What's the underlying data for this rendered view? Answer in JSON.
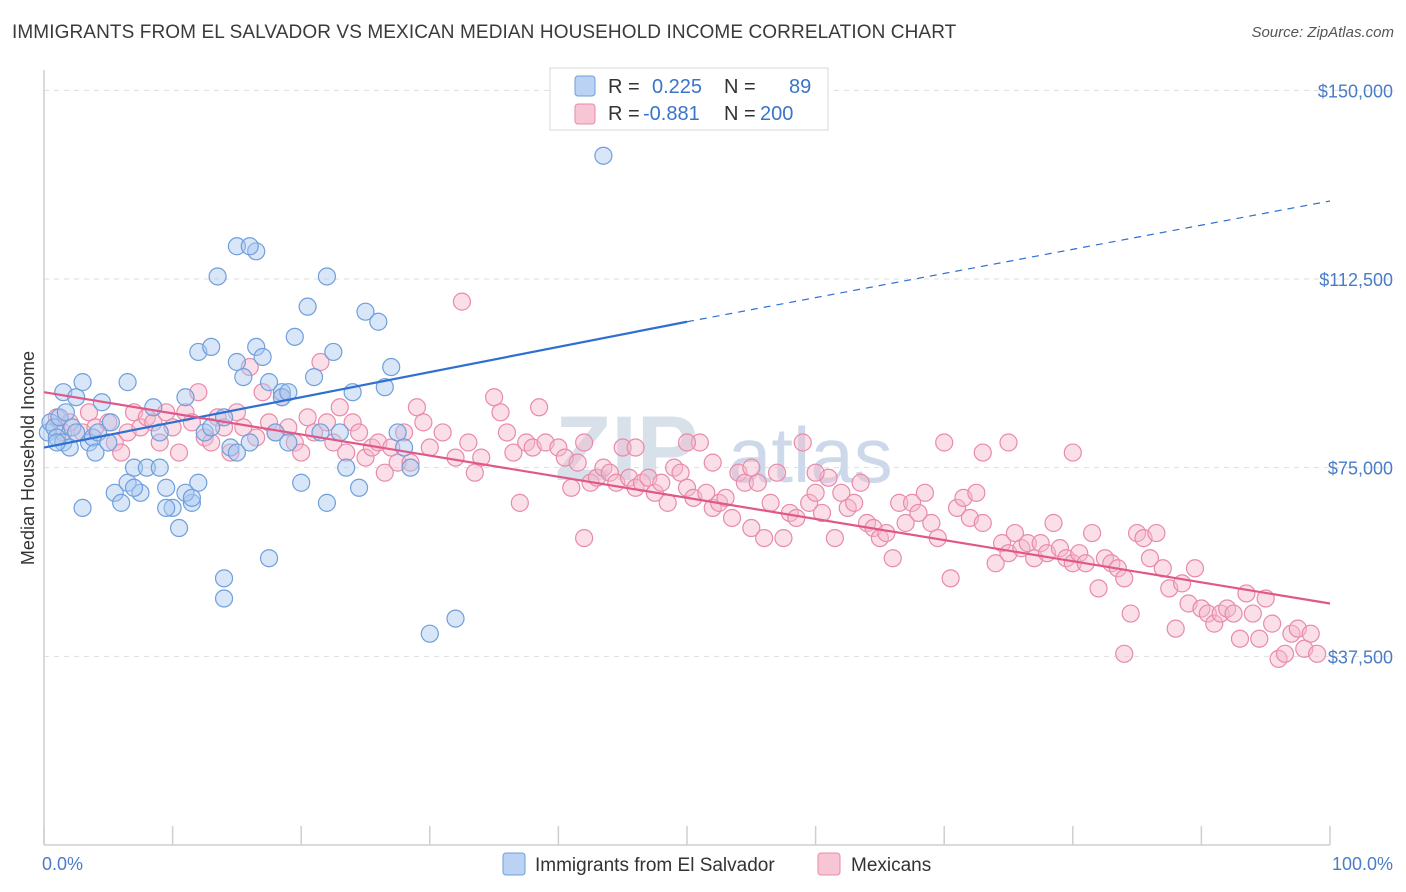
{
  "title": "IMMIGRANTS FROM EL SALVADOR VS MEXICAN MEDIAN HOUSEHOLD INCOME CORRELATION CHART",
  "source": "Source: ZipAtlas.com",
  "watermark": {
    "zip": "ZIP",
    "atlas": "atlas"
  },
  "legend_top": {
    "rows": [
      {
        "r_label": "R =",
        "r_value": "0.225",
        "n_label": "N =",
        "n_value": "89",
        "color": "#a9c7f0"
      },
      {
        "r_label": "R =",
        "r_value": "-0.881",
        "n_label": "N =",
        "n_value": "200",
        "color": "#f5b8cb"
      }
    ]
  },
  "legend_bottom": {
    "items": [
      {
        "label": "Immigrants from El Salvador",
        "color": "#a9c7f0"
      },
      {
        "label": "Mexicans",
        "color": "#f5b8cb"
      }
    ]
  },
  "chart_data": {
    "type": "scatter",
    "xlabel": "",
    "ylabel": "Median Household Income",
    "x_ticks": [
      "0.0%",
      "100.0%"
    ],
    "y_ticks": [
      "$150,000",
      "$112,500",
      "$75,000",
      "$37,500"
    ],
    "y_tick_values": [
      150000,
      112500,
      75000,
      37500
    ],
    "xlim": [
      0,
      100
    ],
    "ylim": [
      0,
      160000
    ],
    "grid": true,
    "series": [
      {
        "name": "Immigrants from El Salvador",
        "color": "#a9c7f0",
        "stroke": "#6f9fdc",
        "trend": {
          "x0": 0,
          "y0": 79000,
          "x1": 50,
          "y1": 104000,
          "x_dash_end": 100,
          "y_dash_end": 128000,
          "color": "#2f6fd0"
        },
        "points": [
          [
            0.3,
            82000
          ],
          [
            0.5,
            84000
          ],
          [
            0.8,
            83000
          ],
          [
            1.0,
            81000
          ],
          [
            1.2,
            85000
          ],
          [
            1.5,
            80000
          ],
          [
            1.7,
            86000
          ],
          [
            2.0,
            79000
          ],
          [
            2.2,
            83000
          ],
          [
            2.5,
            82000
          ],
          [
            1.5,
            90000
          ],
          [
            2.5,
            89000
          ],
          [
            3.0,
            92000
          ],
          [
            3.5,
            80000
          ],
          [
            3.8,
            81000
          ],
          [
            4.0,
            78000
          ],
          [
            4.2,
            82000
          ],
          [
            4.5,
            88000
          ],
          [
            5.0,
            80000
          ],
          [
            5.2,
            84000
          ],
          [
            5.5,
            70000
          ],
          [
            6.0,
            68000
          ],
          [
            6.5,
            72000
          ],
          [
            7.0,
            75000
          ],
          [
            7.5,
            70000
          ],
          [
            8.0,
            75000
          ],
          [
            8.5,
            87000
          ],
          [
            9.0,
            82000
          ],
          [
            9.5,
            71000
          ],
          [
            10.0,
            67000
          ],
          [
            3.0,
            67000
          ],
          [
            6.5,
            92000
          ],
          [
            7.0,
            71000
          ],
          [
            9.0,
            75000
          ],
          [
            10.5,
            63000
          ],
          [
            11.0,
            89000
          ],
          [
            11.5,
            68000
          ],
          [
            12.0,
            72000
          ],
          [
            12.5,
            82000
          ],
          [
            9.5,
            67000
          ],
          [
            12.0,
            98000
          ],
          [
            13.0,
            99000
          ],
          [
            13.5,
            113000
          ],
          [
            14.0,
            85000
          ],
          [
            14.5,
            79000
          ],
          [
            15.0,
            96000
          ],
          [
            15.5,
            93000
          ],
          [
            16.0,
            80000
          ],
          [
            16.5,
            99000
          ],
          [
            17.0,
            97000
          ],
          [
            11.0,
            70000
          ],
          [
            11.5,
            69000
          ],
          [
            13.0,
            83000
          ],
          [
            14.0,
            53000
          ],
          [
            15.0,
            78000
          ],
          [
            17.5,
            92000
          ],
          [
            18.0,
            82000
          ],
          [
            18.5,
            90000
          ],
          [
            19.0,
            80000
          ],
          [
            19.5,
            101000
          ],
          [
            14.0,
            49000
          ],
          [
            15.0,
            119000
          ],
          [
            16.5,
            118000
          ],
          [
            17.5,
            57000
          ],
          [
            18.5,
            89000
          ],
          [
            19.0,
            90000
          ],
          [
            20.0,
            72000
          ],
          [
            20.5,
            107000
          ],
          [
            21.0,
            93000
          ],
          [
            21.5,
            82000
          ],
          [
            16.0,
            119000
          ],
          [
            22.0,
            68000
          ],
          [
            22.5,
            98000
          ],
          [
            23.0,
            82000
          ],
          [
            23.5,
            75000
          ],
          [
            24.0,
            90000
          ],
          [
            24.5,
            71000
          ],
          [
            25.0,
            106000
          ],
          [
            26.0,
            104000
          ],
          [
            26.5,
            91000
          ],
          [
            27.0,
            95000
          ],
          [
            27.5,
            82000
          ],
          [
            28.0,
            79000
          ],
          [
            28.5,
            75000
          ],
          [
            30.0,
            42000
          ],
          [
            32.0,
            45000
          ],
          [
            43.5,
            137000
          ],
          [
            22.0,
            113000
          ],
          [
            1.0,
            80000
          ]
        ]
      },
      {
        "name": "Mexicans",
        "color": "#f5b8cb",
        "stroke": "#e98aa9",
        "trend": {
          "x0": 0,
          "y0": 90000,
          "x1": 100,
          "y1": 48000,
          "color": "#e0578a"
        },
        "points": [
          [
            1.0,
            85000
          ],
          [
            1.5,
            82000
          ],
          [
            2.0,
            84000
          ],
          [
            3.0,
            82000
          ],
          [
            3.5,
            86000
          ],
          [
            4.0,
            83000
          ],
          [
            5.0,
            84000
          ],
          [
            5.5,
            80000
          ],
          [
            6.0,
            78000
          ],
          [
            6.5,
            82000
          ],
          [
            7.0,
            86000
          ],
          [
            7.5,
            83000
          ],
          [
            8.0,
            85000
          ],
          [
            8.5,
            84000
          ],
          [
            9.0,
            80000
          ],
          [
            9.5,
            86000
          ],
          [
            10.0,
            83000
          ],
          [
            10.5,
            78000
          ],
          [
            11.0,
            86000
          ],
          [
            11.5,
            84000
          ],
          [
            12.0,
            90000
          ],
          [
            12.5,
            81000
          ],
          [
            13.0,
            80000
          ],
          [
            13.5,
            85000
          ],
          [
            14.0,
            83000
          ],
          [
            14.5,
            78000
          ],
          [
            15.0,
            86000
          ],
          [
            15.5,
            83000
          ],
          [
            16.0,
            95000
          ],
          [
            16.5,
            81000
          ],
          [
            17.0,
            90000
          ],
          [
            17.5,
            84000
          ],
          [
            18.0,
            82000
          ],
          [
            18.5,
            89000
          ],
          [
            19.0,
            83000
          ],
          [
            19.5,
            80000
          ],
          [
            20.0,
            78000
          ],
          [
            20.5,
            85000
          ],
          [
            21.0,
            82000
          ],
          [
            21.5,
            96000
          ],
          [
            22.0,
            84000
          ],
          [
            22.5,
            80000
          ],
          [
            23.0,
            87000
          ],
          [
            23.5,
            78000
          ],
          [
            24.0,
            84000
          ],
          [
            24.5,
            82000
          ],
          [
            25.0,
            77000
          ],
          [
            25.5,
            79000
          ],
          [
            26.0,
            80000
          ],
          [
            26.5,
            74000
          ],
          [
            27.0,
            79000
          ],
          [
            27.5,
            76000
          ],
          [
            28.0,
            82000
          ],
          [
            28.5,
            76000
          ],
          [
            29.0,
            87000
          ],
          [
            29.5,
            84000
          ],
          [
            30.0,
            79000
          ],
          [
            31.0,
            82000
          ],
          [
            32.0,
            77000
          ],
          [
            32.5,
            108000
          ],
          [
            33.0,
            80000
          ],
          [
            33.5,
            74000
          ],
          [
            34.0,
            77000
          ],
          [
            35.0,
            89000
          ],
          [
            35.5,
            86000
          ],
          [
            36.0,
            82000
          ],
          [
            36.5,
            78000
          ],
          [
            37.0,
            68000
          ],
          [
            37.5,
            80000
          ],
          [
            38.0,
            79000
          ],
          [
            38.5,
            87000
          ],
          [
            39.0,
            80000
          ],
          [
            40.0,
            79000
          ],
          [
            40.5,
            77000
          ],
          [
            41.0,
            71000
          ],
          [
            41.5,
            76000
          ],
          [
            42.0,
            80000
          ],
          [
            42.5,
            72000
          ],
          [
            43.0,
            73000
          ],
          [
            43.5,
            75000
          ],
          [
            44.0,
            74000
          ],
          [
            44.5,
            72000
          ],
          [
            45.0,
            79000
          ],
          [
            45.5,
            73000
          ],
          [
            46.0,
            71000
          ],
          [
            46.5,
            72000
          ],
          [
            47.0,
            73000
          ],
          [
            47.5,
            70000
          ],
          [
            48.0,
            72000
          ],
          [
            48.5,
            68000
          ],
          [
            49.0,
            75000
          ],
          [
            49.5,
            74000
          ],
          [
            50.0,
            71000
          ],
          [
            50.5,
            69000
          ],
          [
            51.0,
            80000
          ],
          [
            51.5,
            70000
          ],
          [
            52.0,
            67000
          ],
          [
            52.5,
            68000
          ],
          [
            53.0,
            69000
          ],
          [
            53.5,
            65000
          ],
          [
            54.0,
            74000
          ],
          [
            54.5,
            72000
          ],
          [
            55.0,
            63000
          ],
          [
            55.5,
            72000
          ],
          [
            56.0,
            61000
          ],
          [
            56.5,
            68000
          ],
          [
            57.0,
            74000
          ],
          [
            57.5,
            61000
          ],
          [
            58.0,
            66000
          ],
          [
            58.5,
            65000
          ],
          [
            59.0,
            80000
          ],
          [
            59.5,
            68000
          ],
          [
            60.0,
            70000
          ],
          [
            60.5,
            66000
          ],
          [
            61.0,
            73000
          ],
          [
            61.5,
            61000
          ],
          [
            62.0,
            70000
          ],
          [
            62.5,
            67000
          ],
          [
            63.0,
            68000
          ],
          [
            63.5,
            72000
          ],
          [
            64.0,
            64000
          ],
          [
            64.5,
            63000
          ],
          [
            65.0,
            61000
          ],
          [
            65.5,
            62000
          ],
          [
            66.0,
            57000
          ],
          [
            66.5,
            68000
          ],
          [
            67.0,
            64000
          ],
          [
            67.5,
            68000
          ],
          [
            68.0,
            66000
          ],
          [
            68.5,
            70000
          ],
          [
            69.0,
            64000
          ],
          [
            69.5,
            61000
          ],
          [
            70.0,
            80000
          ],
          [
            70.5,
            53000
          ],
          [
            71.0,
            67000
          ],
          [
            71.5,
            69000
          ],
          [
            72.0,
            65000
          ],
          [
            72.5,
            70000
          ],
          [
            73.0,
            64000
          ],
          [
            74.0,
            56000
          ],
          [
            74.5,
            60000
          ],
          [
            75.0,
            58000
          ],
          [
            75.5,
            62000
          ],
          [
            76.0,
            59000
          ],
          [
            76.5,
            60000
          ],
          [
            77.0,
            57000
          ],
          [
            77.5,
            60000
          ],
          [
            78.0,
            58000
          ],
          [
            78.5,
            64000
          ],
          [
            79.0,
            59000
          ],
          [
            79.5,
            57000
          ],
          [
            80.0,
            56000
          ],
          [
            80.5,
            58000
          ],
          [
            81.0,
            56000
          ],
          [
            81.5,
            62000
          ],
          [
            82.0,
            51000
          ],
          [
            82.5,
            57000
          ],
          [
            83.0,
            56000
          ],
          [
            83.5,
            55000
          ],
          [
            84.0,
            53000
          ],
          [
            84.5,
            46000
          ],
          [
            85.0,
            62000
          ],
          [
            85.5,
            61000
          ],
          [
            86.0,
            57000
          ],
          [
            86.5,
            62000
          ],
          [
            87.0,
            55000
          ],
          [
            87.5,
            51000
          ],
          [
            88.0,
            43000
          ],
          [
            88.5,
            52000
          ],
          [
            89.0,
            48000
          ],
          [
            89.5,
            55000
          ],
          [
            90.0,
            47000
          ],
          [
            90.5,
            46000
          ],
          [
            91.0,
            44000
          ],
          [
            91.5,
            46000
          ],
          [
            92.0,
            47000
          ],
          [
            92.5,
            46000
          ],
          [
            93.0,
            41000
          ],
          [
            93.5,
            50000
          ],
          [
            94.0,
            46000
          ],
          [
            94.5,
            41000
          ],
          [
            95.0,
            49000
          ],
          [
            95.5,
            44000
          ],
          [
            96.0,
            37000
          ],
          [
            96.5,
            38000
          ],
          [
            97.0,
            42000
          ],
          [
            97.5,
            43000
          ],
          [
            98.0,
            39000
          ],
          [
            98.5,
            42000
          ],
          [
            99.0,
            38000
          ],
          [
            84.0,
            38000
          ],
          [
            80.0,
            78000
          ],
          [
            75.0,
            80000
          ],
          [
            73.0,
            78000
          ],
          [
            60.0,
            74000
          ],
          [
            55.0,
            75000
          ],
          [
            52.0,
            76000
          ],
          [
            50.0,
            80000
          ],
          [
            46.0,
            79000
          ],
          [
            42.0,
            61000
          ]
        ]
      }
    ]
  }
}
